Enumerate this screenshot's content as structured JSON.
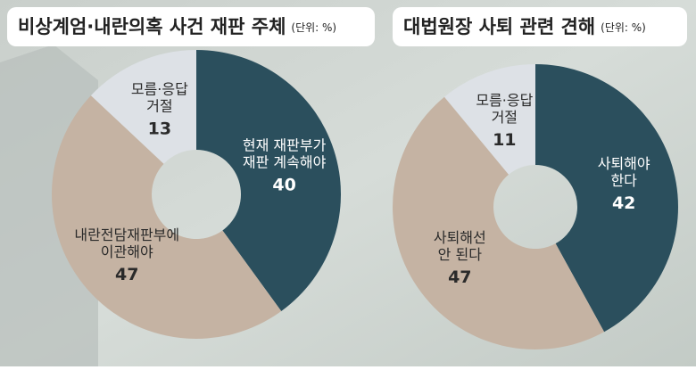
{
  "chart_data": [
    {
      "type": "pie",
      "title": "비상계엄·내란의혹 사건 재판 주체",
      "unit": "(단위: %)",
      "categories": [
        [
          "현재 재판부가",
          "재판 계속해야"
        ],
        [
          "내란전담재판부에",
          "이관해야"
        ],
        [
          "모름·응답",
          "거절"
        ]
      ],
      "values": [
        40,
        47,
        13
      ],
      "colors": [
        "#2b4f5d",
        "#c5b3a3",
        "#dde1e6"
      ]
    },
    {
      "type": "pie",
      "title": "대법원장 사퇴 관련 견해",
      "unit": "(단위: %)",
      "categories": [
        [
          "사퇴해야",
          "한다"
        ],
        [
          "사퇴해선",
          "안 된다"
        ],
        [
          "모름·응답",
          "거절"
        ]
      ],
      "values": [
        42,
        47,
        11
      ],
      "colors": [
        "#2b4f5d",
        "#c5b3a3",
        "#dde1e6"
      ]
    }
  ]
}
